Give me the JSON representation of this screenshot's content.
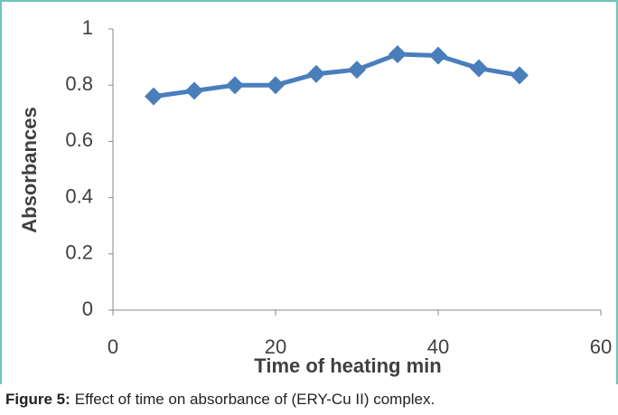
{
  "chart_data": {
    "type": "line",
    "x": [
      5,
      10,
      15,
      20,
      25,
      30,
      35,
      40,
      45,
      50
    ],
    "series": [
      {
        "name": "Absorbance",
        "color": "#4a7ebb",
        "values": [
          0.76,
          0.78,
          0.8,
          0.8,
          0.84,
          0.855,
          0.91,
          0.905,
          0.86,
          0.835
        ]
      }
    ],
    "xlim": [
      0,
      60
    ],
    "xticks": [
      0,
      20,
      40,
      60
    ],
    "ylim": [
      0,
      1
    ],
    "yticks": [
      0,
      0.2,
      0.4,
      0.6,
      0.8,
      1
    ],
    "xlabel": "Time of heating min",
    "ylabel": "Absorbances",
    "caption_label": "Figure 5:",
    "caption": "Effect of time on absorbance of (ERY-Cu II) complex."
  }
}
